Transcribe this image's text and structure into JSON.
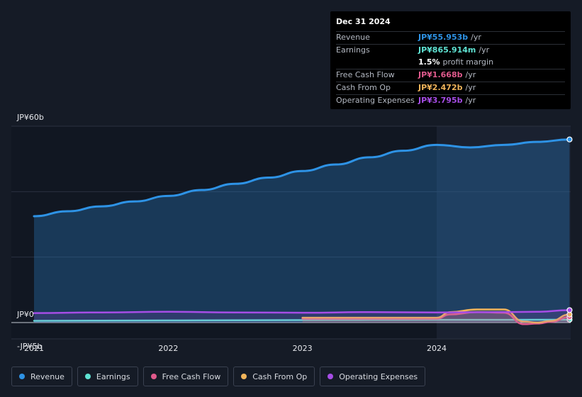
{
  "tooltip": {
    "date": "Dec 31 2024",
    "rows": [
      {
        "label": "Revenue",
        "value": "JP¥55.953b",
        "unit": "/yr",
        "color": "#2e93e6"
      },
      {
        "label": "Earnings",
        "value": "JP¥865.914m",
        "unit": "/yr",
        "color": "#5fe3d3"
      },
      {
        "label": "",
        "value": "1.5%",
        "unit": "profit margin",
        "color": "#ffffff"
      },
      {
        "label": "Free Cash Flow",
        "value": "JP¥1.668b",
        "unit": "/yr",
        "color": "#e05a8c"
      },
      {
        "label": "Cash From Op",
        "value": "JP¥2.472b",
        "unit": "/yr",
        "color": "#f0b45a"
      },
      {
        "label": "Operating Expenses",
        "value": "JP¥3.795b",
        "unit": "/yr",
        "color": "#a64de6"
      }
    ]
  },
  "legend": [
    {
      "label": "Revenue",
      "color": "#2e93e6"
    },
    {
      "label": "Earnings",
      "color": "#5fe3d3"
    },
    {
      "label": "Free Cash Flow",
      "color": "#e05a8c"
    },
    {
      "label": "Cash From Op",
      "color": "#f0b45a"
    },
    {
      "label": "Operating Expenses",
      "color": "#a64de6"
    }
  ],
  "chart_data": {
    "type": "line",
    "y_tick_labels": [
      "JP¥60b",
      "JP¥0",
      "-JP¥5b"
    ],
    "y_ticks": [
      60,
      0,
      -5
    ],
    "x_tick_labels": [
      "2021",
      "2022",
      "2023",
      "2024"
    ],
    "x_ticks": [
      2021.0,
      2022.0,
      2023.0,
      2024.0
    ],
    "ylim": [
      -5,
      60
    ],
    "xlim": [
      2020.83,
      2024.99
    ],
    "grid": true,
    "highlight_start": 2024.0,
    "series": [
      {
        "name": "Revenue",
        "color": "#2e93e6",
        "fill": true,
        "x": [
          2021.0,
          2021.25,
          2021.5,
          2021.75,
          2022.0,
          2022.25,
          2022.5,
          2022.75,
          2023.0,
          2023.25,
          2023.5,
          2023.75,
          2024.0,
          2024.25,
          2024.5,
          2024.75,
          2024.99
        ],
        "y": [
          32.5,
          34.0,
          35.5,
          37.0,
          38.7,
          40.5,
          42.4,
          44.3,
          46.3,
          48.3,
          50.5,
          52.5,
          54.3,
          53.5,
          54.3,
          55.2,
          55.95
        ]
      },
      {
        "name": "Earnings",
        "color": "#5fe3d3",
        "x": [
          2021.0,
          2021.5,
          2022.0,
          2022.5,
          2023.0,
          2023.5,
          2024.0,
          2024.5,
          2024.99
        ],
        "y": [
          0.55,
          0.6,
          0.65,
          0.7,
          0.75,
          0.8,
          0.85,
          0.85,
          0.87
        ]
      },
      {
        "name": "Free Cash Flow",
        "color": "#e05a8c",
        "x": [
          2023.0,
          2023.5,
          2024.0,
          2024.1,
          2024.3,
          2024.5,
          2024.65,
          2024.75,
          2024.85,
          2024.99
        ],
        "y": [
          1.2,
          1.2,
          1.2,
          2.5,
          3.2,
          3.0,
          -0.5,
          -0.3,
          0.2,
          1.67
        ]
      },
      {
        "name": "Cash From Op",
        "color": "#f0b45a",
        "x": [
          2023.0,
          2023.5,
          2024.0,
          2024.1,
          2024.3,
          2024.5,
          2024.65,
          2024.75,
          2024.85,
          2024.99
        ],
        "y": [
          1.5,
          1.5,
          1.5,
          3.2,
          4.0,
          4.0,
          0.3,
          0.0,
          0.5,
          2.47
        ]
      },
      {
        "name": "Operating Expenses",
        "color": "#a64de6",
        "x": [
          2021.0,
          2021.5,
          2022.0,
          2022.5,
          2023.0,
          2023.5,
          2024.0,
          2024.5,
          2024.75,
          2024.99
        ],
        "y": [
          2.9,
          3.1,
          3.3,
          3.1,
          3.0,
          3.2,
          3.1,
          3.2,
          3.3,
          3.8
        ]
      }
    ]
  }
}
